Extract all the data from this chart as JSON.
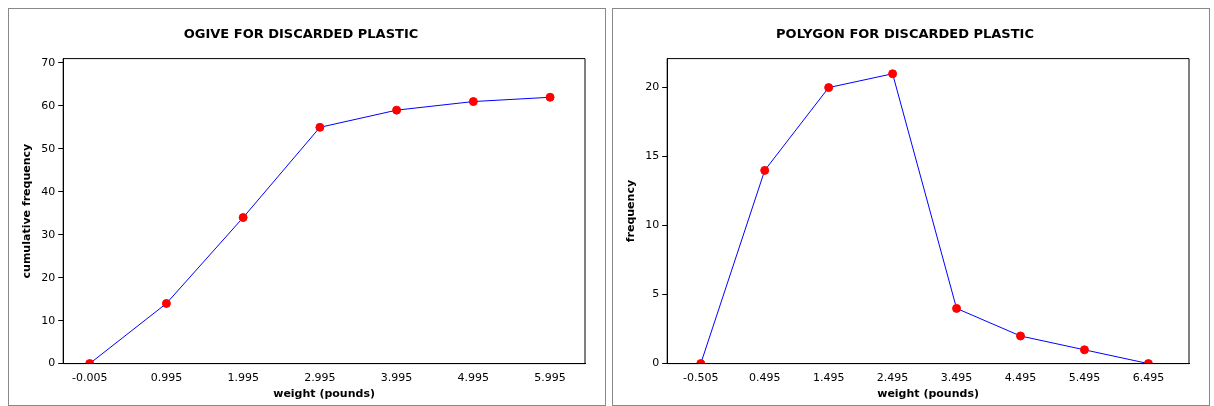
{
  "chart_data": [
    {
      "type": "line",
      "title": "OGIVE FOR DISCARDED PLASTIC",
      "xlabel": "weight (pounds)",
      "ylabel": "cumulative frequency",
      "x": [
        -0.005,
        0.995,
        1.995,
        2.995,
        3.995,
        4.995,
        5.995
      ],
      "series": [
        {
          "color": "#0000ff",
          "values": [
            0,
            14,
            34,
            55,
            59,
            61,
            62
          ]
        }
      ],
      "xlim": [
        -0.35,
        6.45
      ],
      "xticks": [
        -0.005,
        0.995,
        1.995,
        2.995,
        3.995,
        4.995,
        5.995
      ],
      "ylim": [
        0,
        71
      ],
      "yticks": [
        0,
        10,
        20,
        30,
        40,
        50,
        60,
        70
      ],
      "grid": false,
      "legend": false,
      "marker": "circle",
      "line_style": "solid"
    },
    {
      "type": "line",
      "title": "POLYGON FOR DISCARDED PLASTIC",
      "xlabel": "weight (pounds)",
      "ylabel": "frequency",
      "x": [
        -0.505,
        0.495,
        1.495,
        2.495,
        3.495,
        4.495,
        5.495,
        6.495
      ],
      "series": [
        {
          "color": "#0000ff",
          "values": [
            0,
            14,
            20,
            21,
            4,
            2,
            1,
            0
          ]
        }
      ],
      "xlim": [
        -1.03,
        7.13
      ],
      "xticks": [
        -0.505,
        0.495,
        1.495,
        2.495,
        3.495,
        4.495,
        5.495,
        6.495
      ],
      "ylim": [
        0,
        22.1
      ],
      "yticks": [
        0,
        5,
        10,
        15,
        20
      ],
      "grid": false,
      "legend": false,
      "marker": "circle",
      "line_style": "solid"
    }
  ]
}
